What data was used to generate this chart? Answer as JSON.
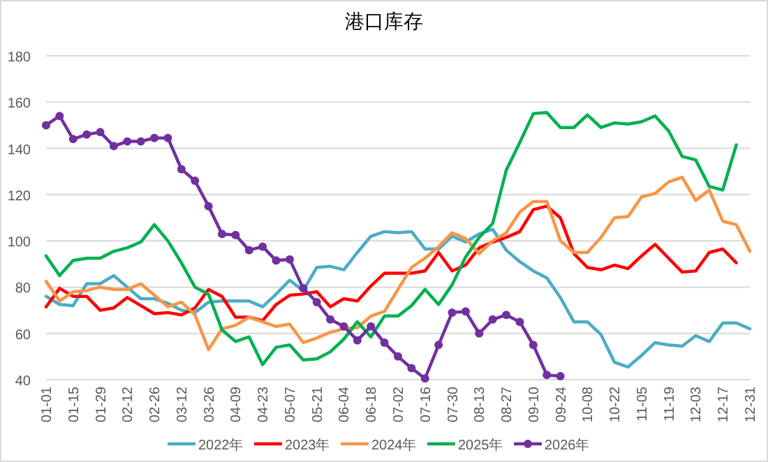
{
  "chart_data": {
    "type": "line",
    "title": "港口库存",
    "categories": [
      "01-01",
      null,
      "01-15",
      null,
      "01-29",
      null,
      "02-12",
      null,
      "02-26",
      null,
      "03-12",
      null,
      "03-26",
      null,
      "04-09",
      null,
      "04-23",
      null,
      "05-07",
      null,
      "05-21",
      null,
      "06-04",
      null,
      "06-18",
      null,
      "07-02",
      null,
      "07-16",
      null,
      "07-30",
      null,
      "08-13",
      null,
      "08-27",
      null,
      "09-10",
      null,
      "09-24",
      null,
      "10-08",
      null,
      "10-22",
      null,
      "11-05",
      null,
      "11-19",
      null,
      "12-03",
      null,
      "12-17",
      null,
      "12-31"
    ],
    "series": [
      {
        "name": "2022年",
        "color": "#4bacc6",
        "values": [
          76,
          72.5,
          72,
          81.5,
          81.5,
          85,
          80,
          75,
          75,
          73,
          70,
          69,
          73.5,
          74,
          74,
          74,
          71.5,
          77,
          83,
          78.5,
          88.5,
          89,
          87.5,
          95,
          102,
          104,
          103.5,
          104,
          96.5,
          96.5,
          102,
          99.5,
          103,
          105,
          96,
          91,
          87,
          84,
          75.5,
          65,
          65,
          59.5,
          47.5,
          45.5,
          50.5,
          56,
          55,
          54.5,
          59,
          56.5,
          64.5,
          64.5,
          62
        ]
      },
      {
        "name": "2023年",
        "color": "#ff0000",
        "values": [
          71.5,
          79.5,
          76,
          76,
          70,
          71,
          75.5,
          72,
          68.5,
          69,
          68,
          71,
          79,
          76,
          67,
          67,
          65.5,
          72.5,
          76.5,
          77,
          78,
          71.5,
          75,
          74,
          80.5,
          86,
          86,
          86,
          87,
          95,
          87,
          89.5,
          97,
          99.5,
          101.5,
          104,
          113.5,
          115,
          110,
          94.5,
          88.5,
          87.5,
          89.5,
          88,
          93.5,
          98.5,
          92.5,
          86.5,
          87,
          95,
          96.5,
          90.5,
          null
        ]
      },
      {
        "name": "2024年",
        "color": "#f79646",
        "values": [
          82.5,
          74,
          78,
          78.5,
          80,
          79,
          79,
          81.5,
          76.5,
          71.5,
          73.5,
          68,
          53,
          62,
          63.5,
          67,
          65,
          63,
          64,
          56,
          58,
          60.5,
          62,
          62.5,
          67.5,
          69.5,
          79,
          88.5,
          92.5,
          97.5,
          103.5,
          101,
          94.5,
          100,
          103.5,
          112.5,
          117,
          117,
          100,
          95,
          95,
          101.5,
          110,
          110.5,
          119,
          120.5,
          125.5,
          127.5,
          117.5,
          122,
          108.5,
          107,
          95.5
        ]
      },
      {
        "name": "2025年",
        "color": "#00b050",
        "values": [
          93.5,
          85,
          91.5,
          92.5,
          92.5,
          95.5,
          97,
          99.5,
          107,
          100,
          90.5,
          80,
          77,
          61.5,
          56.5,
          58.5,
          46.5,
          54,
          55,
          48.5,
          49,
          52,
          57.5,
          65,
          58.5,
          67.5,
          67.5,
          72,
          79,
          72.5,
          81,
          93,
          101.5,
          107.5,
          130.5,
          142.5,
          155,
          155.5,
          149,
          149,
          154.5,
          149,
          151,
          150.5,
          151.5,
          154,
          147.5,
          136.5,
          135,
          123.5,
          122,
          141.5,
          null
        ]
      },
      {
        "name": "2026年",
        "color": "#7030a0",
        "marker": "circle",
        "values": [
          150,
          154,
          144,
          146,
          147,
          141,
          143,
          143,
          144.5,
          144.5,
          131,
          126,
          115,
          103,
          102.5,
          96,
          97.5,
          91.5,
          92,
          79.5,
          73.5,
          66,
          63,
          57,
          63,
          56,
          50,
          45,
          40.5,
          55,
          69,
          69.5,
          60,
          66,
          68,
          65,
          55,
          42,
          41.5,
          null,
          null,
          null,
          null,
          null,
          null,
          null,
          null,
          null,
          null,
          null,
          null,
          null,
          null
        ]
      }
    ],
    "ylim": [
      40,
      180
    ],
    "yticks": [
      40,
      60,
      80,
      100,
      120,
      140,
      160,
      180
    ],
    "grid": "y",
    "legend": "bottom"
  }
}
